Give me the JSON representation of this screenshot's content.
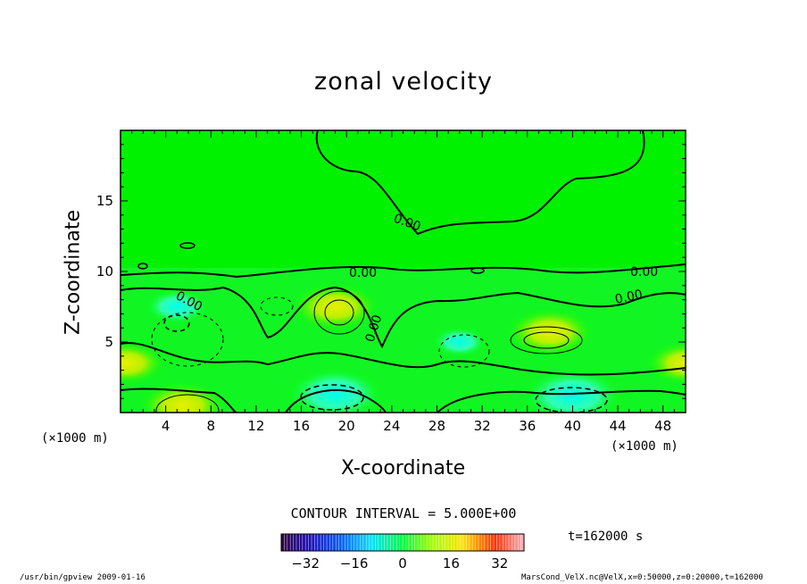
{
  "chart_data": {
    "type": "contour",
    "title": "zonal velocity",
    "xlabel": "X-coordinate",
    "ylabel": "Z-coordinate",
    "x_unit_left": "(×1000 m)",
    "x_unit_right": "(×1000 m)",
    "xlim": [
      0,
      50
    ],
    "ylim": [
      0,
      20
    ],
    "xticks": [
      "4",
      "8",
      "12",
      "16",
      "20",
      "24",
      "28",
      "32",
      "36",
      "40",
      "44",
      "48"
    ],
    "yticks": [
      "5",
      "10",
      "15"
    ],
    "contour_labels": [
      "0.00",
      "0.00",
      "0.00",
      "0.00",
      "0.00",
      "0.00",
      "0.00"
    ],
    "contour_interval": "CONTOUR INTERVAL = 5.000E+00",
    "time": "t=162000 s",
    "colorbar": {
      "range": [
        -40,
        40
      ],
      "ticks": [
        "−32",
        "−16",
        "0",
        "16",
        "32"
      ],
      "colormap": "rainbow"
    },
    "extrema": [
      {
        "x": 19,
        "z": 7.5,
        "value": 12,
        "sign": "positive"
      },
      {
        "x": 38,
        "z": 5.7,
        "value": 12,
        "sign": "positive"
      },
      {
        "x": 5.5,
        "z": 0.5,
        "value": 12,
        "sign": "positive"
      },
      {
        "x": 50,
        "z": 3.5,
        "value": 10,
        "sign": "positive"
      },
      {
        "x": 0.5,
        "z": 3.5,
        "value": 10,
        "sign": "positive"
      },
      {
        "x": 5,
        "z": 7.5,
        "value": -7,
        "sign": "negative"
      },
      {
        "x": 19,
        "z": 1.3,
        "value": -14,
        "sign": "negative"
      },
      {
        "x": 40,
        "z": 1.2,
        "value": -15,
        "sign": "negative"
      },
      {
        "x": 30,
        "z": 5,
        "value": -5,
        "sign": "negative"
      }
    ]
  },
  "footer_left": "/usr/bin/gpview   2009-01-16",
  "footer_right": "MarsCond_VelX.nc@VelX,x=0:50000,z=0:20000,t=162000"
}
